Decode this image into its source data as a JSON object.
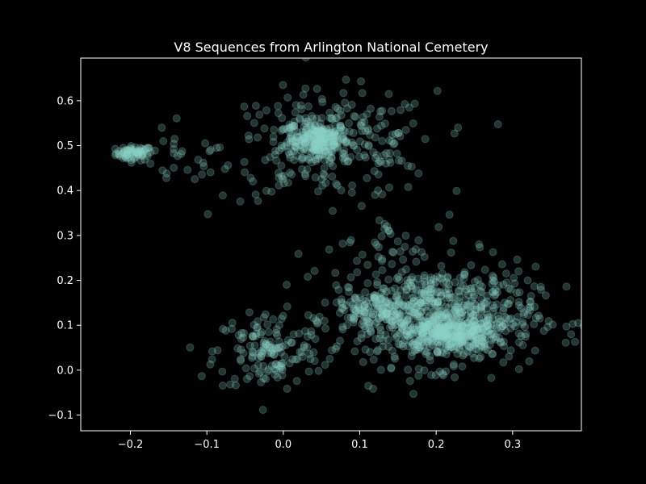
{
  "chart_data": {
    "type": "scatter",
    "title": "V8 Sequences from Arlington National Cemetery",
    "xlabel": "",
    "ylabel": "",
    "xlim": [
      -0.265,
      0.39
    ],
    "ylim": [
      -0.135,
      0.695
    ],
    "x_ticks": [
      {
        "value": -0.2,
        "label": "−0.2"
      },
      {
        "value": -0.1,
        "label": "−0.1"
      },
      {
        "value": 0.0,
        "label": "0.0"
      },
      {
        "value": 0.1,
        "label": "0.1"
      },
      {
        "value": 0.2,
        "label": "0.2"
      },
      {
        "value": 0.3,
        "label": "0.3"
      }
    ],
    "y_ticks": [
      {
        "value": -0.1,
        "label": "−0.1"
      },
      {
        "value": 0.0,
        "label": "0.0"
      },
      {
        "value": 0.1,
        "label": "0.1"
      },
      {
        "value": 0.2,
        "label": "0.2"
      },
      {
        "value": 0.3,
        "label": "0.3"
      },
      {
        "value": 0.4,
        "label": "0.4"
      },
      {
        "value": 0.5,
        "label": "0.5"
      },
      {
        "value": 0.6,
        "label": "0.6"
      }
    ],
    "grid": false,
    "point_color": "#8dd3c7",
    "point_alpha": 0.25,
    "background": "#000000",
    "axis_color": "#ffffff",
    "clusters": [
      {
        "label": "upper-left",
        "center": [
          -0.195,
          0.483
        ],
        "spread": [
          0.012,
          0.008
        ],
        "count": 70
      },
      {
        "label": "upper-left-sparse",
        "center": [
          -0.14,
          0.465
        ],
        "spread": [
          0.03,
          0.03
        ],
        "count": 22
      },
      {
        "label": "upper-dense",
        "center": [
          0.045,
          0.515
        ],
        "spread": [
          0.02,
          0.02
        ],
        "count": 220
      },
      {
        "label": "upper-diffuse",
        "center": [
          0.06,
          0.5
        ],
        "spread": [
          0.07,
          0.06
        ],
        "count": 260
      },
      {
        "label": "lower-left",
        "center": [
          -0.02,
          0.04
        ],
        "spread": [
          0.035,
          0.045
        ],
        "count": 140
      },
      {
        "label": "lower-right-dense",
        "center": [
          0.22,
          0.08
        ],
        "spread": [
          0.03,
          0.018
        ],
        "count": 260
      },
      {
        "label": "lower-right-diffuse",
        "center": [
          0.2,
          0.12
        ],
        "spread": [
          0.065,
          0.055
        ],
        "count": 700
      },
      {
        "label": "lower-right-arm",
        "center": [
          0.12,
          0.14
        ],
        "spread": [
          0.025,
          0.02
        ],
        "count": 90
      },
      {
        "label": "mid-sparse",
        "center": [
          0.15,
          0.28
        ],
        "spread": [
          0.05,
          0.03
        ],
        "count": 30
      }
    ]
  }
}
